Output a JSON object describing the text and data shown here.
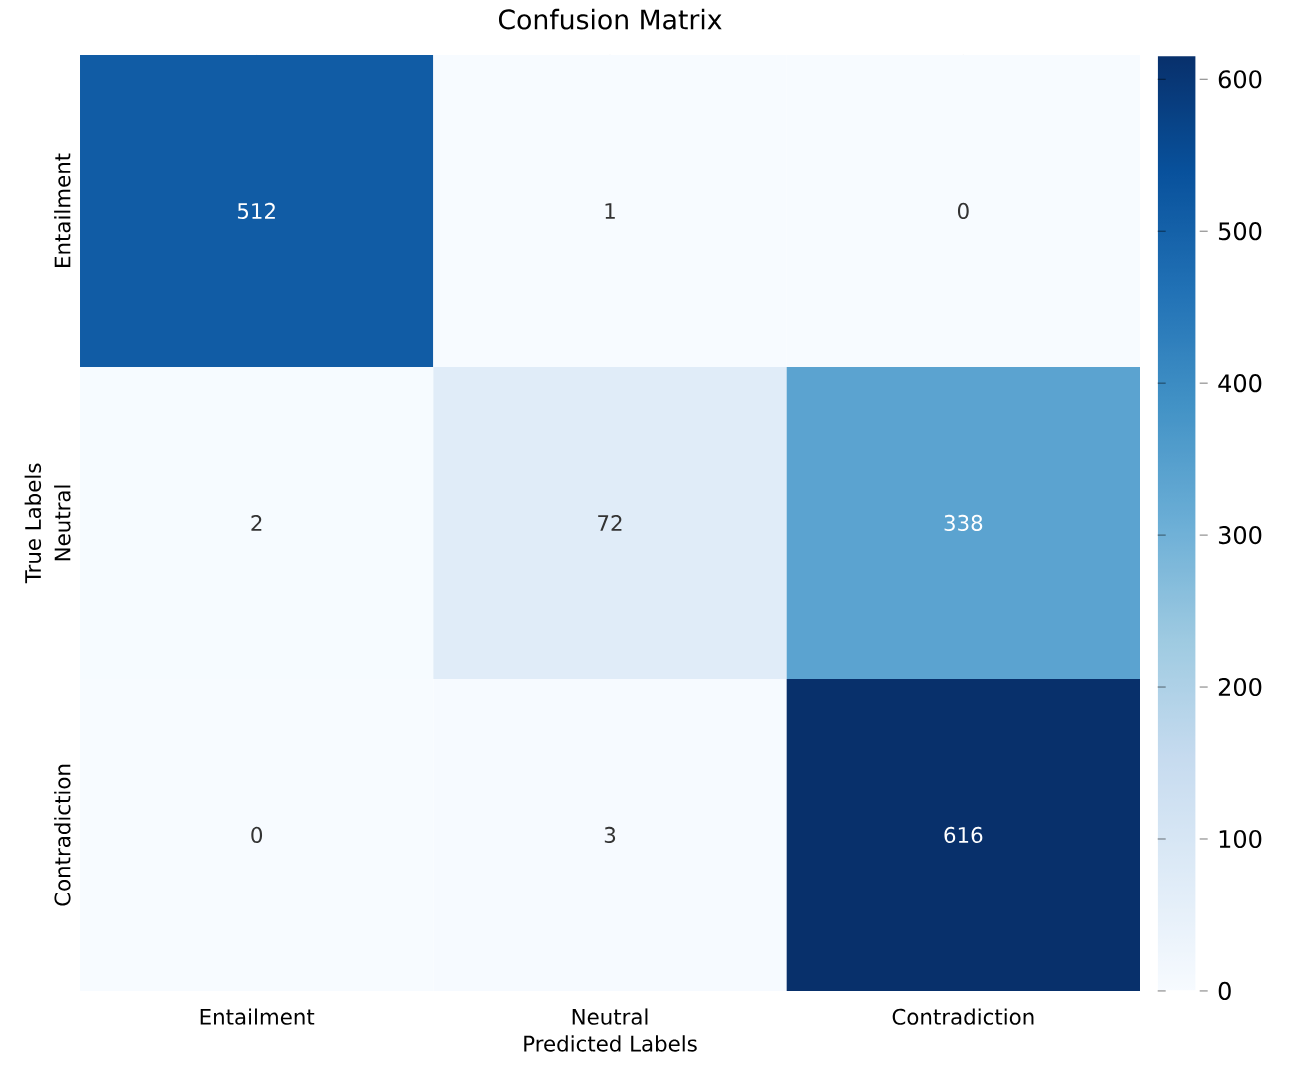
{
  "chart_data": {
    "type": "heatmap",
    "title": "Confusion Matrix",
    "xlabel": "Predicted Labels",
    "ylabel": "True Labels",
    "categories": [
      "Entailment",
      "Neutral",
      "Contradiction"
    ],
    "y_categories": [
      "Entailment",
      "Neutral",
      "Contradiction"
    ],
    "cells": [
      [
        512,
        1,
        0
      ],
      [
        2,
        72,
        338
      ],
      [
        0,
        3,
        616
      ]
    ],
    "data_labels": true,
    "clim": [
      0,
      616
    ],
    "cticks": [
      0,
      100,
      200,
      300,
      400,
      500,
      600
    ]
  }
}
